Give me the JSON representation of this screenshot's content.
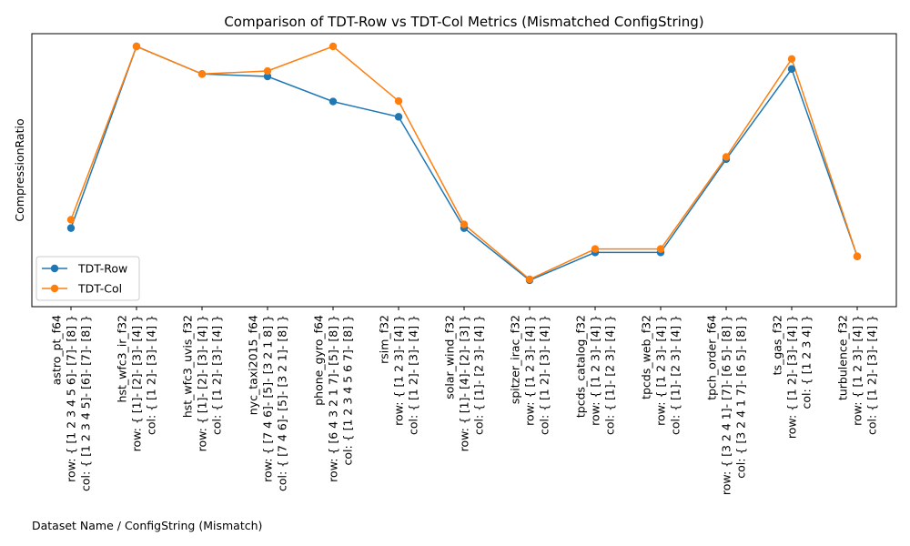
{
  "chart_data": {
    "type": "line",
    "title": "Comparison of TDT-Row vs TDT-Col Metrics (Mismatched ConfigString)",
    "xlabel": "Dataset Name / ConfigString (Mismatch)",
    "ylabel": "CompressionRatio",
    "y_tick_labels_visible": false,
    "grid": false,
    "legend_position": "lower-left",
    "ylim": [
      0.0,
      1.0
    ],
    "categories": [
      [
        "astro_pt_f64",
        "row: { [1 2 3 4 5 6]- [7]- [8] }",
        "col: { [1 2 3 4 5]- [6]- [7]- [8] }"
      ],
      [
        "hst_wfc3_ir_f32",
        "row: { [1]- [2]- [3]- [4] }",
        "col: { [1 2]- [3]- [4] }"
      ],
      [
        "hst_wfc3_uvis_f32",
        "row: { [1]- [2]- [3]- [4] }",
        "col: { [1 2]- [3]- [4] }"
      ],
      [
        "nyc_taxi2015_f64",
        "row: { [7 4 6]- [5]- [3 2 1 8] }",
        "col: { [7 4 6]- [5]- [3 2 1]- [8] }"
      ],
      [
        "phone_gyro_f64",
        "row: { [6 4 3 2 1 7]- [5]- [8] }",
        "col: { [1 2 3 4 5 6 7]- [8] }"
      ],
      [
        "rsim_f32",
        "row: { [1 2 3]- [4] }",
        "col: { [1 2]- [3]- [4] }"
      ],
      [
        "solar_wind_f32",
        "row: { [1]- [4]- [2]- [3] }",
        "col: { [1]- [2 3]- [4] }"
      ],
      [
        "spitzer_irac_f32",
        "row: { [1 2 3]- [4] }",
        "col: { [1 2]- [3]- [4] }"
      ],
      [
        "tpcds_catalog_f32",
        "row: { [1 2 3]- [4] }",
        "col: { [1]- [2 3]- [4] }"
      ],
      [
        "tpcds_web_f32",
        "row: { [1 2 3]- [4] }",
        "col: { [1]- [2 3]- [4] }"
      ],
      [
        "tpch_order_f64",
        "row: { [3 2 4 1]- [7]- [6 5]- [8] }",
        "col: { [3 2 4 1 7]- [6 5]- [8] }"
      ],
      [
        "ts_gas_f32",
        "row: { [1 2]- [3]- [4] }",
        "col: { [1 2 3 4] }"
      ],
      [
        "turbulence_f32",
        "row: { [1 2 3]- [4] }",
        "col: { [1 2]- [3]- [4] }"
      ]
    ],
    "series": [
      {
        "name": "TDT-Row",
        "color": "#1f77b4",
        "marker": "circle",
        "values": [
          0.262,
          1.0,
          0.888,
          0.878,
          0.776,
          0.714,
          0.262,
          0.05,
          0.163,
          0.163,
          0.542,
          0.908,
          0.147
        ]
      },
      {
        "name": "TDT-Col",
        "color": "#ff7f0e",
        "marker": "circle",
        "values": [
          0.296,
          1.0,
          0.888,
          0.9,
          1.0,
          0.778,
          0.277,
          0.054,
          0.177,
          0.177,
          0.551,
          0.949,
          0.147
        ]
      }
    ]
  }
}
